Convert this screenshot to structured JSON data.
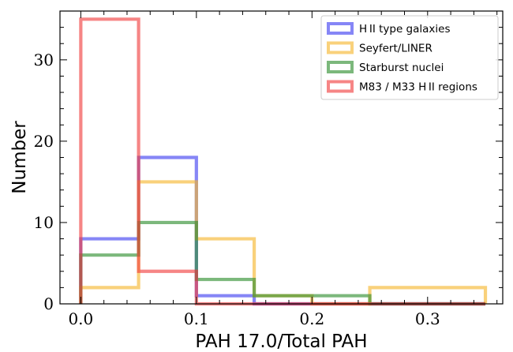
{
  "chart_data": {
    "type": "histogram",
    "xlabel": "PAH 17.0/Total PAH",
    "ylabel": "Number",
    "xlim": [
      -0.018,
      0.365
    ],
    "ylim": [
      0,
      36
    ],
    "xticks": [
      0.0,
      0.1,
      0.2,
      0.3
    ],
    "xtick_labels": [
      "0.0",
      "0.1",
      "0.2",
      "0.3"
    ],
    "yticks": [
      0,
      10,
      20,
      30
    ],
    "ytick_labels": [
      "0",
      "10",
      "20",
      "30"
    ],
    "bin_edges": [
      0.0,
      0.05,
      0.1,
      0.15,
      0.2,
      0.25,
      0.3,
      0.35
    ],
    "legend_position": "upper right",
    "grid": false,
    "series": [
      {
        "name": "H II type galaxies",
        "color": "#3b3bf0",
        "counts": [
          8,
          18,
          1,
          0,
          0,
          0,
          0
        ]
      },
      {
        "name": "Seyfert/LINER",
        "color": "#f5b52a",
        "counts": [
          2,
          15,
          8,
          1,
          0,
          2,
          2
        ]
      },
      {
        "name": "Starburst nuclei",
        "color": "#2c8c2c",
        "counts": [
          6,
          10,
          3,
          1,
          1,
          0,
          0
        ]
      },
      {
        "name": "M83 / M33 H II regions",
        "color": "#f03a3a",
        "counts": [
          35,
          4,
          0,
          0,
          0,
          0,
          0
        ]
      }
    ]
  }
}
